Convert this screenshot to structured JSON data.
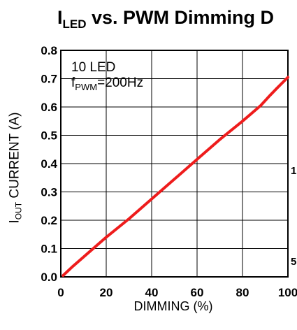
{
  "title": {
    "main": "I",
    "sub": "LED",
    "rest": " vs. PWM Dimming D"
  },
  "ylabel": {
    "main": "I",
    "sub": "OUT",
    "rest": " CURRENT (A)"
  },
  "legend": {
    "line1": "10 LED",
    "line2_main": "f",
    "line2_sub": "PWM",
    "line2_rest": "=200Hz"
  },
  "edge_text": [
    "1",
    "5"
  ],
  "chart_data": {
    "type": "line",
    "xlabel": "DIMMING (%)",
    "xlim": [
      0,
      100
    ],
    "ylim": [
      0.0,
      0.8
    ],
    "xticks": [
      0,
      20,
      40,
      60,
      80,
      100
    ],
    "xtick_labels": [
      "0",
      "20",
      "40",
      "60",
      "80",
      "100"
    ],
    "yticks": [
      0.0,
      0.1,
      0.2,
      0.3,
      0.4,
      0.5,
      0.6,
      0.7,
      0.8
    ],
    "ytick_labels": [
      "0.0",
      "0.1",
      "0.2",
      "0.3",
      "0.4",
      "0.5",
      "0.6",
      "0.7",
      "0.8"
    ],
    "grid": true,
    "line_color": "#ee1c1c",
    "series": [
      {
        "x": [
          1,
          5,
          10,
          20,
          30,
          40,
          50,
          60,
          70,
          80,
          88,
          92,
          95,
          100
        ],
        "y": [
          0.005,
          0.035,
          0.07,
          0.14,
          0.205,
          0.275,
          0.345,
          0.415,
          0.485,
          0.55,
          0.605,
          0.64,
          0.665,
          0.705
        ]
      }
    ]
  }
}
